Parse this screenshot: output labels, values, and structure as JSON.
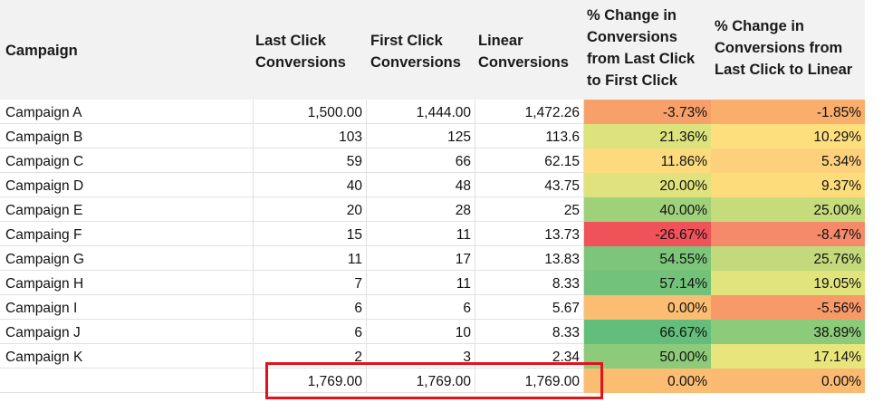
{
  "headers": {
    "campaign": "Campaign",
    "last_click": "Last Click\nConversions",
    "first_click": "First Click\nConversions",
    "linear": "Linear\nConversions",
    "pct_first": "% Change in\nConversions\nfrom Last Click\nto First Click",
    "pct_linear": "% Change in\nConversions from\nLast Click to Linear"
  },
  "rows": [
    {
      "campaign": "Campaign A",
      "last": "1,500.00",
      "first": "1,444.00",
      "linear": "1,472.26",
      "pct_first": "-3.73%",
      "pct_linear": "-1.85%",
      "color_first": "#f8a06a",
      "color_linear": "#f9ae6b"
    },
    {
      "campaign": "Campaign B",
      "last": "103",
      "first": "125",
      "linear": "113.6",
      "pct_first": "21.36%",
      "pct_linear": "10.29%",
      "color_first": "#dce27c",
      "color_linear": "#fedf7d"
    },
    {
      "campaign": "Campaign C",
      "last": "59",
      "first": "66",
      "linear": "62.15",
      "pct_first": "11.86%",
      "pct_linear": "5.34%",
      "color_first": "#fcda7d",
      "color_linear": "#fdd07c"
    },
    {
      "campaign": "Campaign D",
      "last": "40",
      "first": "48",
      "linear": "43.75",
      "pct_first": "20.00%",
      "pct_linear": "9.37%",
      "color_first": "#e0e37d",
      "color_linear": "#fddc7c"
    },
    {
      "campaign": "Campaign E",
      "last": "20",
      "first": "28",
      "linear": "25",
      "pct_first": "40.00%",
      "pct_linear": "25.00%",
      "color_first": "#9fd07a",
      "color_linear": "#c6dc7b"
    },
    {
      "campaign": "Campaing F",
      "last": "15",
      "first": "11",
      "linear": "13.73",
      "pct_first": "-26.67%",
      "pct_linear": "-8.47%",
      "color_first": "#f0525a",
      "color_linear": "#f48a6a"
    },
    {
      "campaign": "Campaign G",
      "last": "11",
      "first": "17",
      "linear": "13.83",
      "pct_first": "54.55%",
      "pct_linear": "25.76%",
      "color_first": "#7cc57a",
      "color_linear": "#c2da7b"
    },
    {
      "campaign": "Campaign H",
      "last": "7",
      "first": "11",
      "linear": "8.33",
      "pct_first": "57.14%",
      "pct_linear": "19.05%",
      "color_first": "#72c27a",
      "color_linear": "#e1e37c"
    },
    {
      "campaign": "Campaign I",
      "last": "6",
      "first": "6",
      "linear": "5.67",
      "pct_first": "0.00%",
      "pct_linear": "-5.56%",
      "color_first": "#fbbd72",
      "color_linear": "#f79a68"
    },
    {
      "campaign": "Campaign J",
      "last": "6",
      "first": "10",
      "linear": "8.33",
      "pct_first": "66.67%",
      "pct_linear": "38.89%",
      "color_first": "#63be7b",
      "color_linear": "#8ccb79"
    },
    {
      "campaign": "Campaign K",
      "last": "2",
      "first": "3",
      "linear": "2.34",
      "pct_first": "50.00%",
      "pct_linear": "17.14%",
      "color_first": "#8dcb7a",
      "color_linear": "#e8e57c"
    },
    {
      "campaign": "",
      "last": "1,769.00",
      "first": "1,769.00",
      "linear": "1,769.00",
      "pct_first": "0.00%",
      "pct_linear": "0.00%",
      "color_first": "#fbbd72",
      "color_linear": "#fbba71"
    }
  ],
  "highlight_color": "#e3111b"
}
